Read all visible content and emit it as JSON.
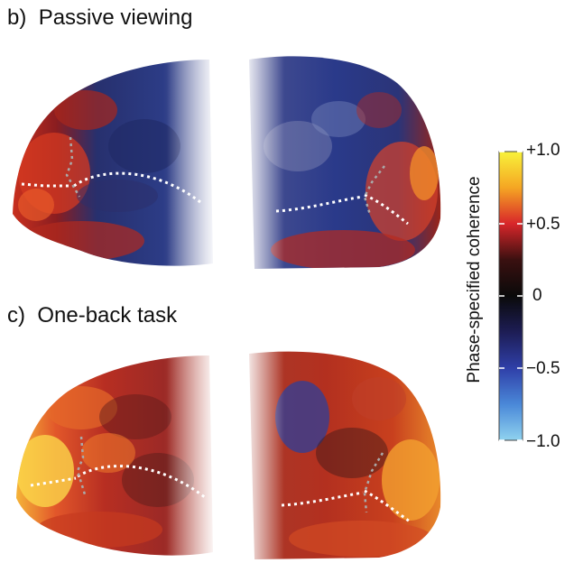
{
  "panels": [
    {
      "label": "b)",
      "title": "Passive viewing"
    },
    {
      "label": "c)",
      "title": "One-back task"
    }
  ],
  "colorbar": {
    "title": "Phase-specified coherence",
    "ticks": [
      "+1.0",
      "+0.5",
      "0",
      "−0.5",
      "−1.0"
    ],
    "colors": [
      "#f8f23a",
      "#f5a623",
      "#d8262a",
      "#3a1010",
      "#0a0a0a",
      "#1d1d55",
      "#2f3fa8",
      "#4a88d8",
      "#8fd2ef"
    ]
  }
}
